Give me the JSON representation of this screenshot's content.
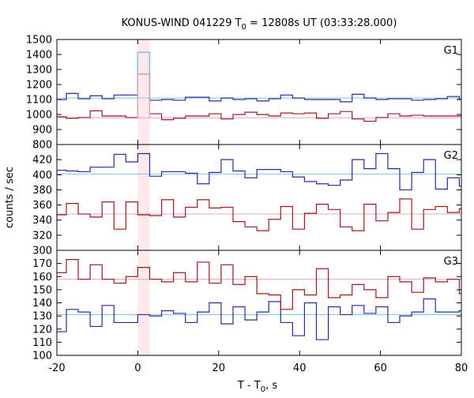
{
  "chart_data": {
    "type": "line",
    "title_main": "KONUS-WIND 041229 T",
    "title_sub": "0",
    "title_rest": " = 12808s UT (03:33:28.000)",
    "xlabel_main": "T - T",
    "xlabel_sub": "0",
    "xlabel_rest": ", s",
    "ylabel": "counts / sec",
    "xlim": [
      -20,
      80
    ],
    "xticks": [
      -20,
      0,
      20,
      40,
      60,
      80
    ],
    "bin_width": 2.944,
    "bin_start": -20.608,
    "highlight": {
      "x0": 0,
      "x1": 2.944,
      "color": "#fde8ea"
    },
    "colors": {
      "blue": "#2a2a9a",
      "red": "#9a1a1a",
      "cyan": "#7fc6f0",
      "pink": "#e8a0c8"
    },
    "panels": [
      {
        "label": "G1",
        "ylim": [
          800,
          1500
        ],
        "yticks": [
          800,
          900,
          1000,
          1100,
          1200,
          1300,
          1400,
          1500
        ],
        "background": {
          "blue": 1110,
          "red": 978
        },
        "series": [
          {
            "name": "blue",
            "values": [
              1100,
              1140,
              1105,
              1125,
              1105,
              1130,
              1130,
              1415,
              1095,
              1100,
              1095,
              1115,
              1115,
              1090,
              1110,
              1100,
              1105,
              1090,
              1105,
              1130,
              1110,
              1100,
              1100,
              1100,
              1085,
              1135,
              1110,
              1100,
              1105,
              1105,
              1095,
              1100,
              1105,
              1120,
              1100
            ]
          },
          {
            "name": "red",
            "values": [
              985,
              975,
              980,
              1025,
              990,
              990,
              980,
              1270,
              1005,
              965,
              975,
              990,
              990,
              1005,
              970,
              1000,
              1015,
              1000,
              990,
              1010,
              1005,
              1010,
              975,
              1005,
              1020,
              970,
              955,
              980,
              1005,
              990,
              995,
              990,
              990,
              990,
              990
            ]
          }
        ]
      },
      {
        "label": "G2",
        "ylim": [
          300,
          440
        ],
        "yticks": [
          300,
          320,
          340,
          360,
          380,
          400,
          420
        ],
        "background": {
          "blue": 401,
          "red": 348
        },
        "series": [
          {
            "name": "blue",
            "values": [
              406,
              405,
              404,
              410,
              410,
              427,
              417,
              428,
              398,
              404,
              404,
              402,
              388,
              403,
              420,
              405,
              396,
              407,
              407,
              404,
              397,
              391,
              388,
              386,
              393,
              420,
              408,
              428,
              408,
              380,
              403,
              420,
              381,
              396,
              385
            ]
          },
          {
            "name": "red",
            "values": [
              347,
              362,
              348,
              344,
              364,
              328,
              364,
              347,
              346,
              367,
              344,
              357,
              367,
              356,
              357,
              338,
              331,
              326,
              341,
              358,
              328,
              349,
              361,
              354,
              331,
              326,
              361,
              339,
              350,
              368,
              328,
              354,
              358,
              350,
              355
            ]
          }
        ]
      },
      {
        "label": "G3",
        "ylim": [
          100,
          180
        ],
        "yticks": [
          100,
          110,
          120,
          130,
          140,
          150,
          160,
          170
        ],
        "background": {
          "blue": 131,
          "red": 158
        },
        "series": [
          {
            "name": "blue",
            "values": [
              118,
              135,
              133,
              122,
              138,
              125,
              125,
              131,
              130,
              134,
              132,
              125,
              133,
              140,
              124,
              137,
              127,
              133,
              141,
              125,
              115,
              140,
              112,
              137,
              131,
              138,
              132,
              137,
              125,
              130,
              133,
              143,
              133,
              133,
              134
            ]
          },
          {
            "name": "red",
            "values": [
              163,
              173,
              158,
              169,
              158,
              155,
              160,
              167,
              158,
              156,
              163,
              156,
              171,
              155,
              169,
              154,
              160,
              147,
              146,
              135,
              150,
              146,
              166,
              144,
              146,
              154,
              150,
              144,
              160,
              156,
              148,
              159,
              156,
              158,
              147
            ]
          }
        ]
      }
    ]
  }
}
